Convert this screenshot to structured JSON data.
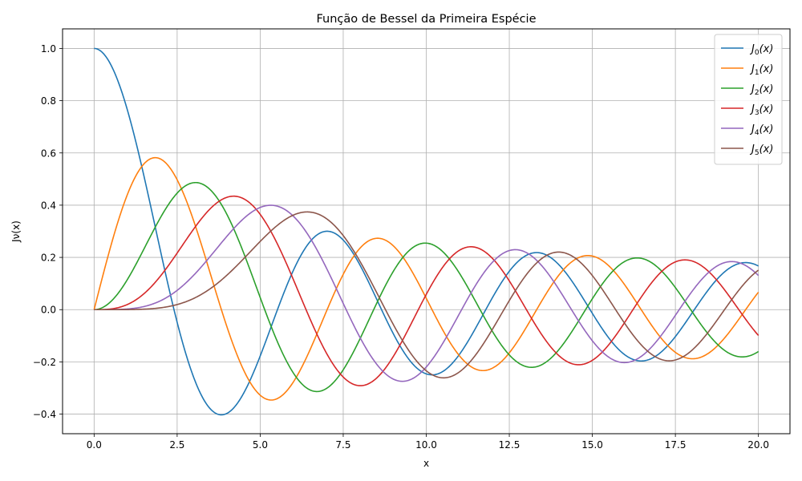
{
  "chart_data": {
    "type": "line",
    "title": "Função de Bessel da Primeira Espécie",
    "xlabel": "x",
    "ylabel": "Jν(x)",
    "xlim": [
      -0.95,
      20.95
    ],
    "ylim": [
      -0.475,
      1.075
    ],
    "xticks": [
      0.0,
      2.5,
      5.0,
      7.5,
      10.0,
      12.5,
      15.0,
      17.5,
      20.0
    ],
    "xtick_labels": [
      "0.0",
      "2.5",
      "5.0",
      "7.5",
      "10.0",
      "12.5",
      "15.0",
      "17.5",
      "20.0"
    ],
    "yticks": [
      -0.4,
      -0.2,
      0.0,
      0.2,
      0.4,
      0.6,
      0.8,
      1.0
    ],
    "ytick_labels": [
      "−0.4",
      "−0.2",
      "0.0",
      "0.2",
      "0.4",
      "0.6",
      "0.8",
      "1.0"
    ],
    "grid": true,
    "legend_position": "top-right",
    "x_range": [
      0,
      20
    ],
    "series": [
      {
        "name": "J0(x)",
        "name_main": "J",
        "name_sub": "0",
        "name_tail": "(x)",
        "order": 0,
        "color": "#1f77b4"
      },
      {
        "name": "J1(x)",
        "name_main": "J",
        "name_sub": "1",
        "name_tail": "(x)",
        "order": 1,
        "color": "#ff7f0e"
      },
      {
        "name": "J2(x)",
        "name_main": "J",
        "name_sub": "2",
        "name_tail": "(x)",
        "order": 2,
        "color": "#2ca02c"
      },
      {
        "name": "J3(x)",
        "name_main": "J",
        "name_sub": "3",
        "name_tail": "(x)",
        "order": 3,
        "color": "#d62728"
      },
      {
        "name": "J4(x)",
        "name_main": "J",
        "name_sub": "4",
        "name_tail": "(x)",
        "order": 4,
        "color": "#9467bd"
      },
      {
        "name": "J5(x)",
        "name_main": "J",
        "name_sub": "5",
        "name_tail": "(x)",
        "order": 5,
        "color": "#8c564b"
      }
    ],
    "peaks": [
      {
        "series": "J0(x)",
        "x": 0.0,
        "y": 1.0
      },
      {
        "series": "J0(x)",
        "x": 3.83,
        "y": -0.403
      },
      {
        "series": "J0(x)",
        "x": 7.02,
        "y": 0.3
      },
      {
        "series": "J1(x)",
        "x": 1.84,
        "y": 0.582
      },
      {
        "series": "J1(x)",
        "x": 5.33,
        "y": -0.346
      },
      {
        "series": "J2(x)",
        "x": 3.05,
        "y": 0.486
      },
      {
        "series": "J3(x)",
        "x": 4.2,
        "y": 0.434
      },
      {
        "series": "J4(x)",
        "x": 5.32,
        "y": 0.4
      },
      {
        "series": "J5(x)",
        "x": 6.42,
        "y": 0.374
      }
    ]
  }
}
